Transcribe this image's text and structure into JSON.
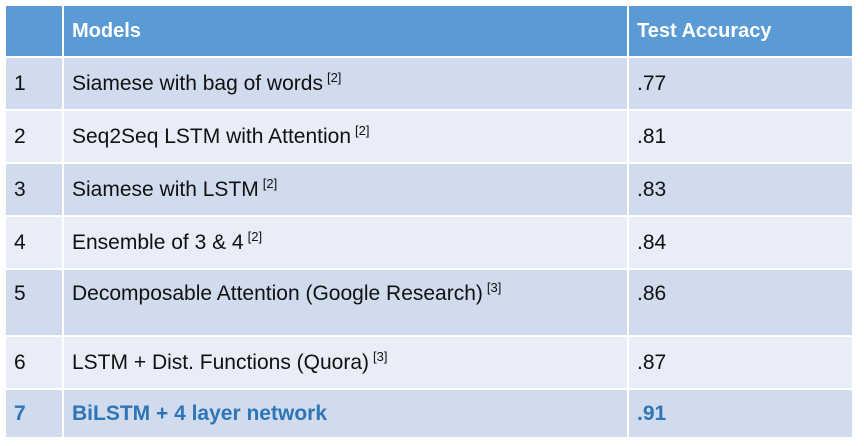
{
  "table": {
    "headers": {
      "number": "",
      "model": "Models",
      "accuracy": "Test Accuracy"
    },
    "rows": [
      {
        "num": "1",
        "model": "Siamese with bag of words",
        "ref": "[2]",
        "accuracy": ".77"
      },
      {
        "num": "2",
        "model": "Seq2Seq LSTM with Attention",
        "ref": "[2]",
        "accuracy": ".81"
      },
      {
        "num": "3",
        "model": "Siamese with LSTM",
        "ref": "[2]",
        "accuracy": ".83"
      },
      {
        "num": "4",
        "model": "Ensemble of 3 & 4",
        "ref": "[2]",
        "accuracy": ".84"
      },
      {
        "num": "5",
        "model": "Decomposable Attention (Google Research)",
        "ref": "[3]",
        "accuracy": ".86"
      },
      {
        "num": "6",
        "model": "LSTM + Dist. Functions (Quora)",
        "ref": "[3]",
        "accuracy": ".87"
      },
      {
        "num": "7",
        "model": "BiLSTM + 4 layer network",
        "ref": "",
        "accuracy": ".91"
      }
    ]
  },
  "colors": {
    "header_bg": "#5b9bd5",
    "row_dark": "#d0dbee",
    "row_light": "#e8edf7",
    "highlight_text": "#2e75b6"
  }
}
